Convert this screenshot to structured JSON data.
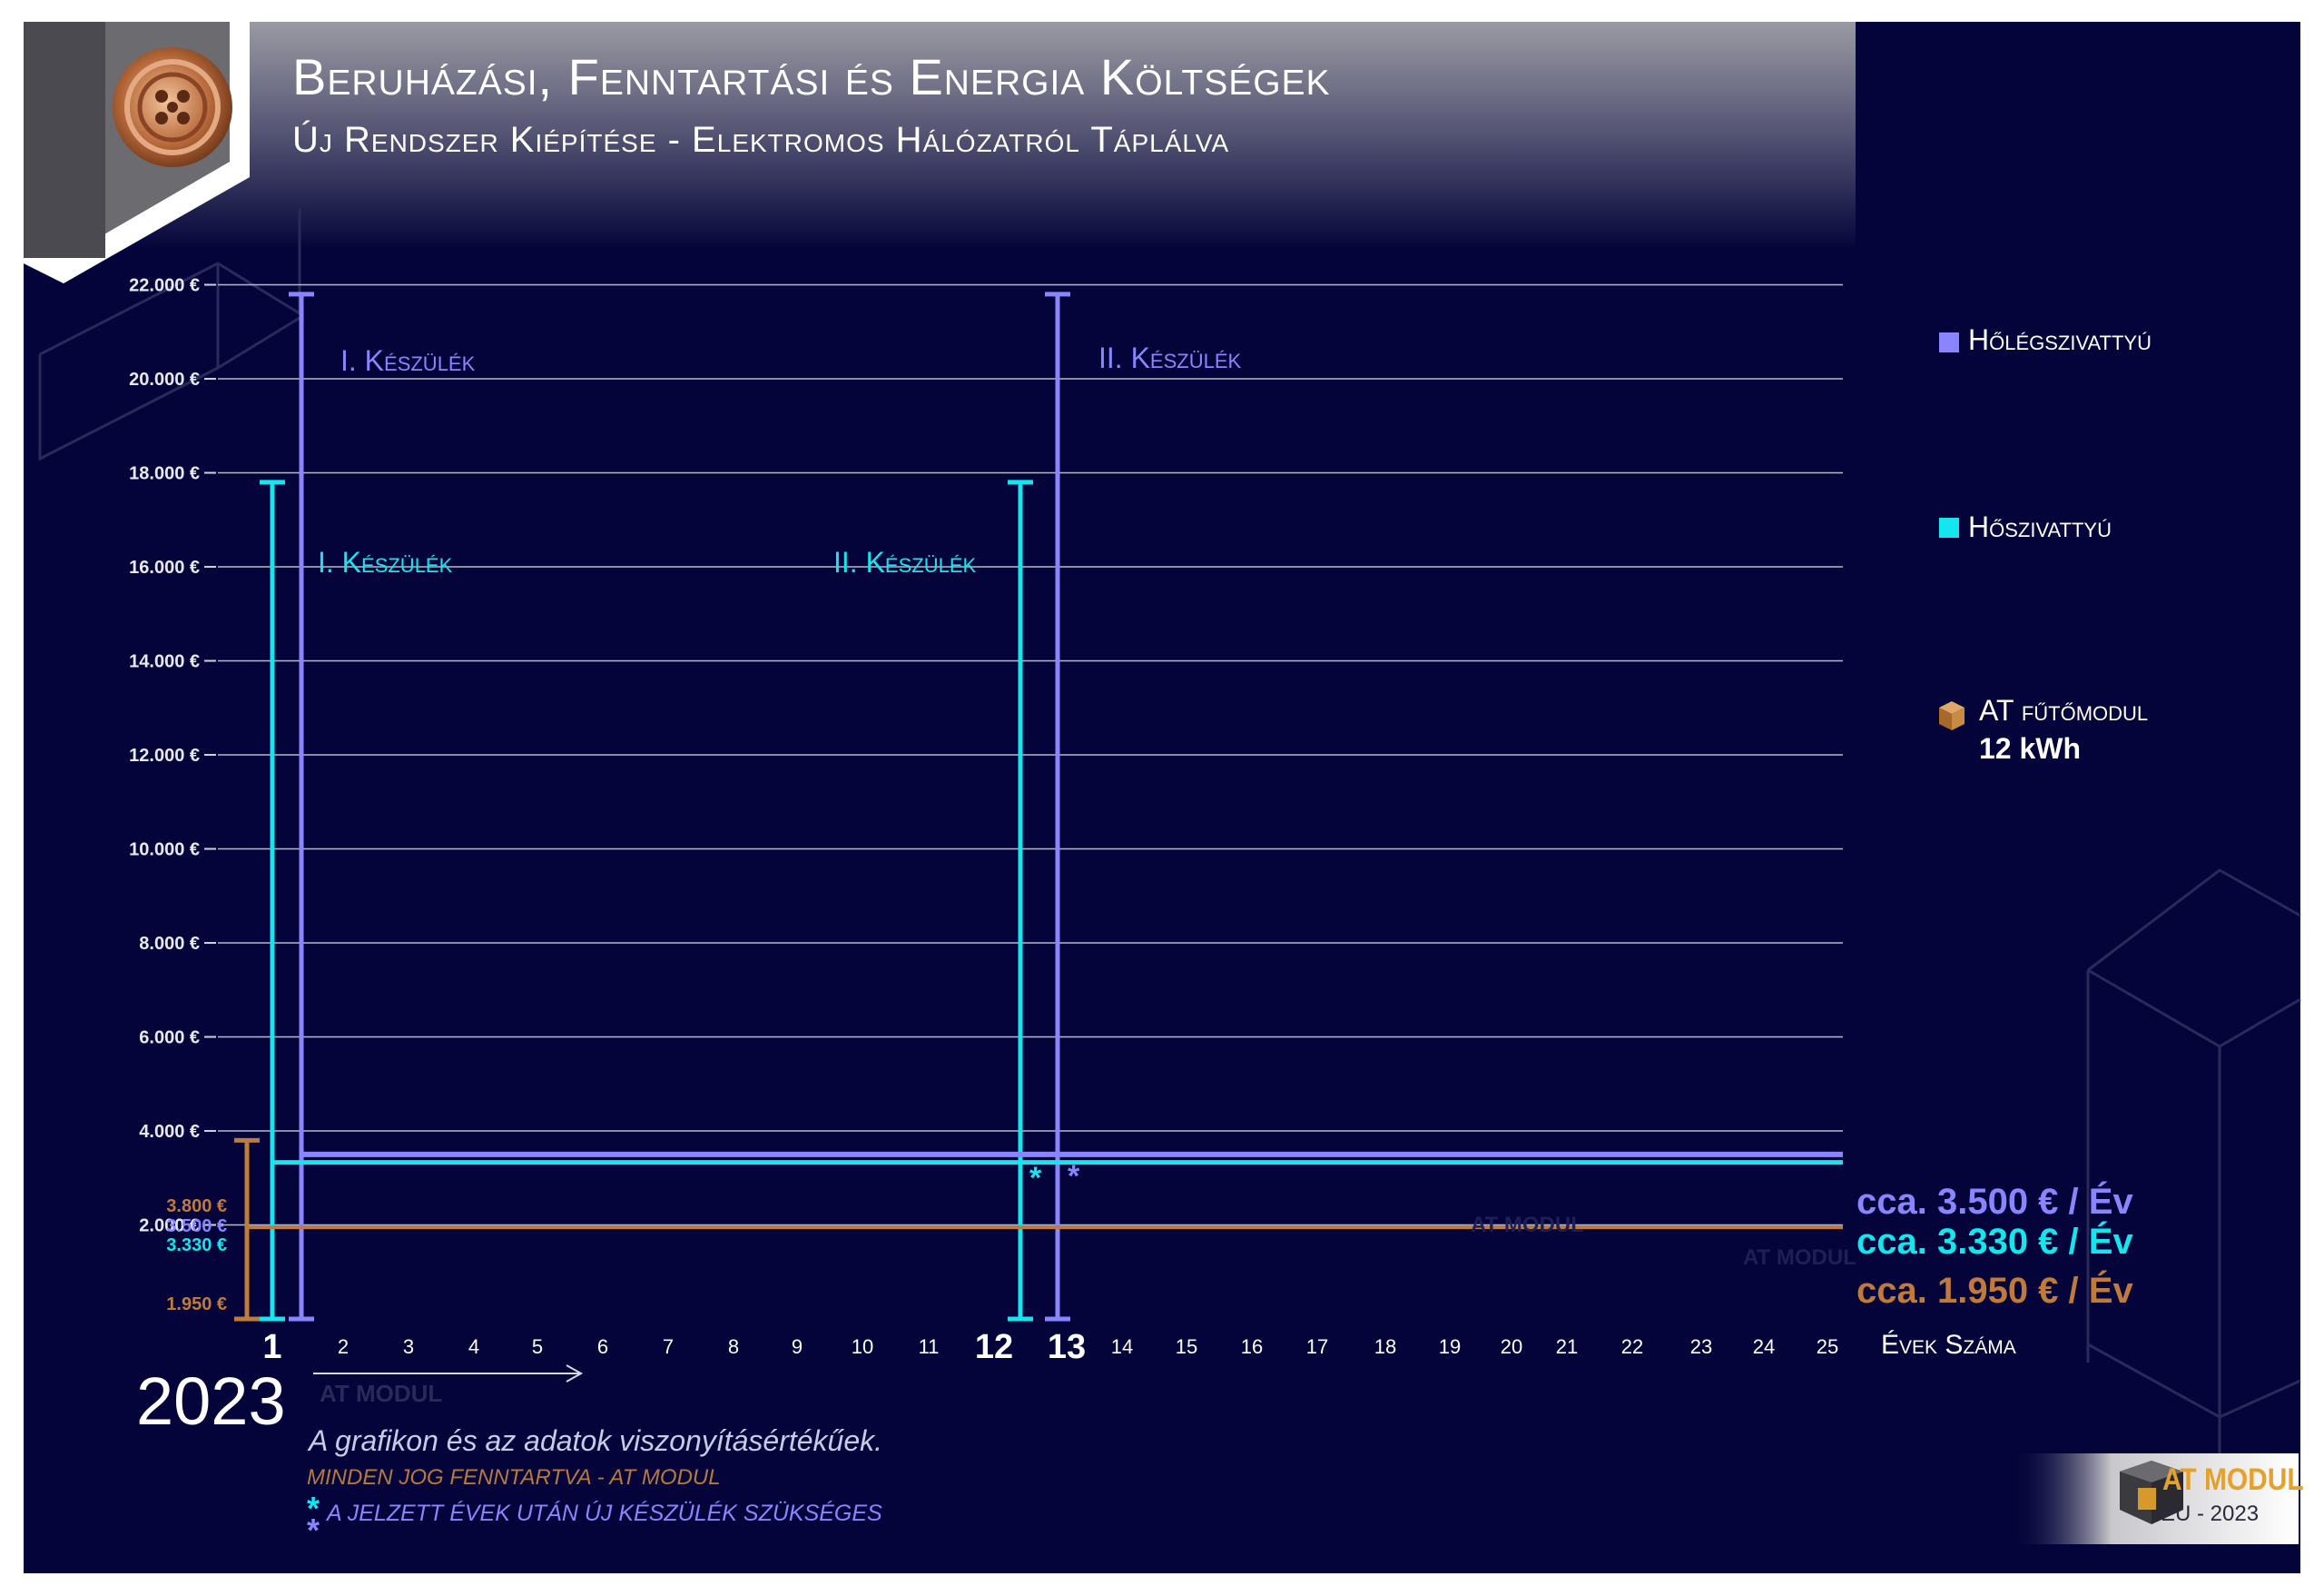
{
  "title": "Beruházási, Fenntartási és Energia Költségek",
  "subtitle": "Új Rendszer Kiépítése - Elektromos Hálózatról Táplálva",
  "year": "2023",
  "watermark": "AT MODUL",
  "colors": {
    "background": "#04043a",
    "levego": "#8a85ff",
    "viz": "#13e6ee",
    "at": "#c07a3a",
    "grid": "#c8c8d8"
  },
  "legend": {
    "levego": "Hőlégszivattyú",
    "viz": "Hőszivattyú",
    "at_name": "AT fűtőmodul",
    "at_power": "12 kWh"
  },
  "notes": {
    "reference": "A grafikon és az adatok viszonyításértékűek.",
    "rights": "MINDEN JOG FENNTARTVA - AT MODUL",
    "star_note": "A JELZETT ÉVEK UTÁN ÚJ KÉSZÜLÉK SZÜKSÉGES",
    "star_mark": "*"
  },
  "brand": {
    "name": "AT MODUL",
    "sub": "EU - 2023"
  },
  "chart_data": {
    "type": "line",
    "title": "Beruházási, Fenntartási és Energia Költségek",
    "xlabel": "Évek Száma",
    "ylabel": "",
    "x": [
      1,
      2,
      3,
      4,
      5,
      6,
      7,
      8,
      9,
      10,
      11,
      12,
      13,
      14,
      15,
      16,
      17,
      18,
      19,
      20,
      21,
      22,
      23,
      24,
      25
    ],
    "ylim": [
      0,
      22000
    ],
    "yticks": [
      2000,
      4000,
      6000,
      8000,
      10000,
      12000,
      14000,
      16000,
      18000,
      20000,
      22000
    ],
    "ytick_labels": [
      "2.000 €",
      "4.000 €",
      "6.000 €",
      "8.000 €",
      "10.000 €",
      "12.000 €",
      "14.000 €",
      "16.000 €",
      "18.000 €",
      "20.000 €",
      "22.000 €"
    ],
    "grid": true,
    "legend_position": "right",
    "series": [
      {
        "name": "Hőlégszivattyú",
        "color": "#8a85ff",
        "annual_cost": 3500,
        "annual_label": "cca. 3.500 € / Év",
        "y_marker": "3.500 €",
        "device_purchases": [
          {
            "year": 1,
            "cost": 21800,
            "label": "I. Készülék"
          },
          {
            "year": 13,
            "cost": 21800,
            "label": "II. Készülék"
          }
        ]
      },
      {
        "name": "Hőszivattyú",
        "color": "#13e6ee",
        "annual_cost": 3330,
        "annual_label": "cca. 3.330 € / Év",
        "y_marker": "3.330 €",
        "device_purchases": [
          {
            "year": 1,
            "cost": 17800,
            "label": "I. Készülék"
          },
          {
            "year": 12,
            "cost": 17800,
            "label": "II. Készülék"
          }
        ]
      },
      {
        "name": "AT fűtőmodul 12 kWh",
        "color": "#c07a3a",
        "annual_cost": 1950,
        "annual_label": "cca. 1.950 € / Év",
        "y_marker": "1.950 €",
        "device_purchases": [
          {
            "year": 1,
            "cost": 3800,
            "label": "3.800 €"
          }
        ]
      }
    ]
  }
}
